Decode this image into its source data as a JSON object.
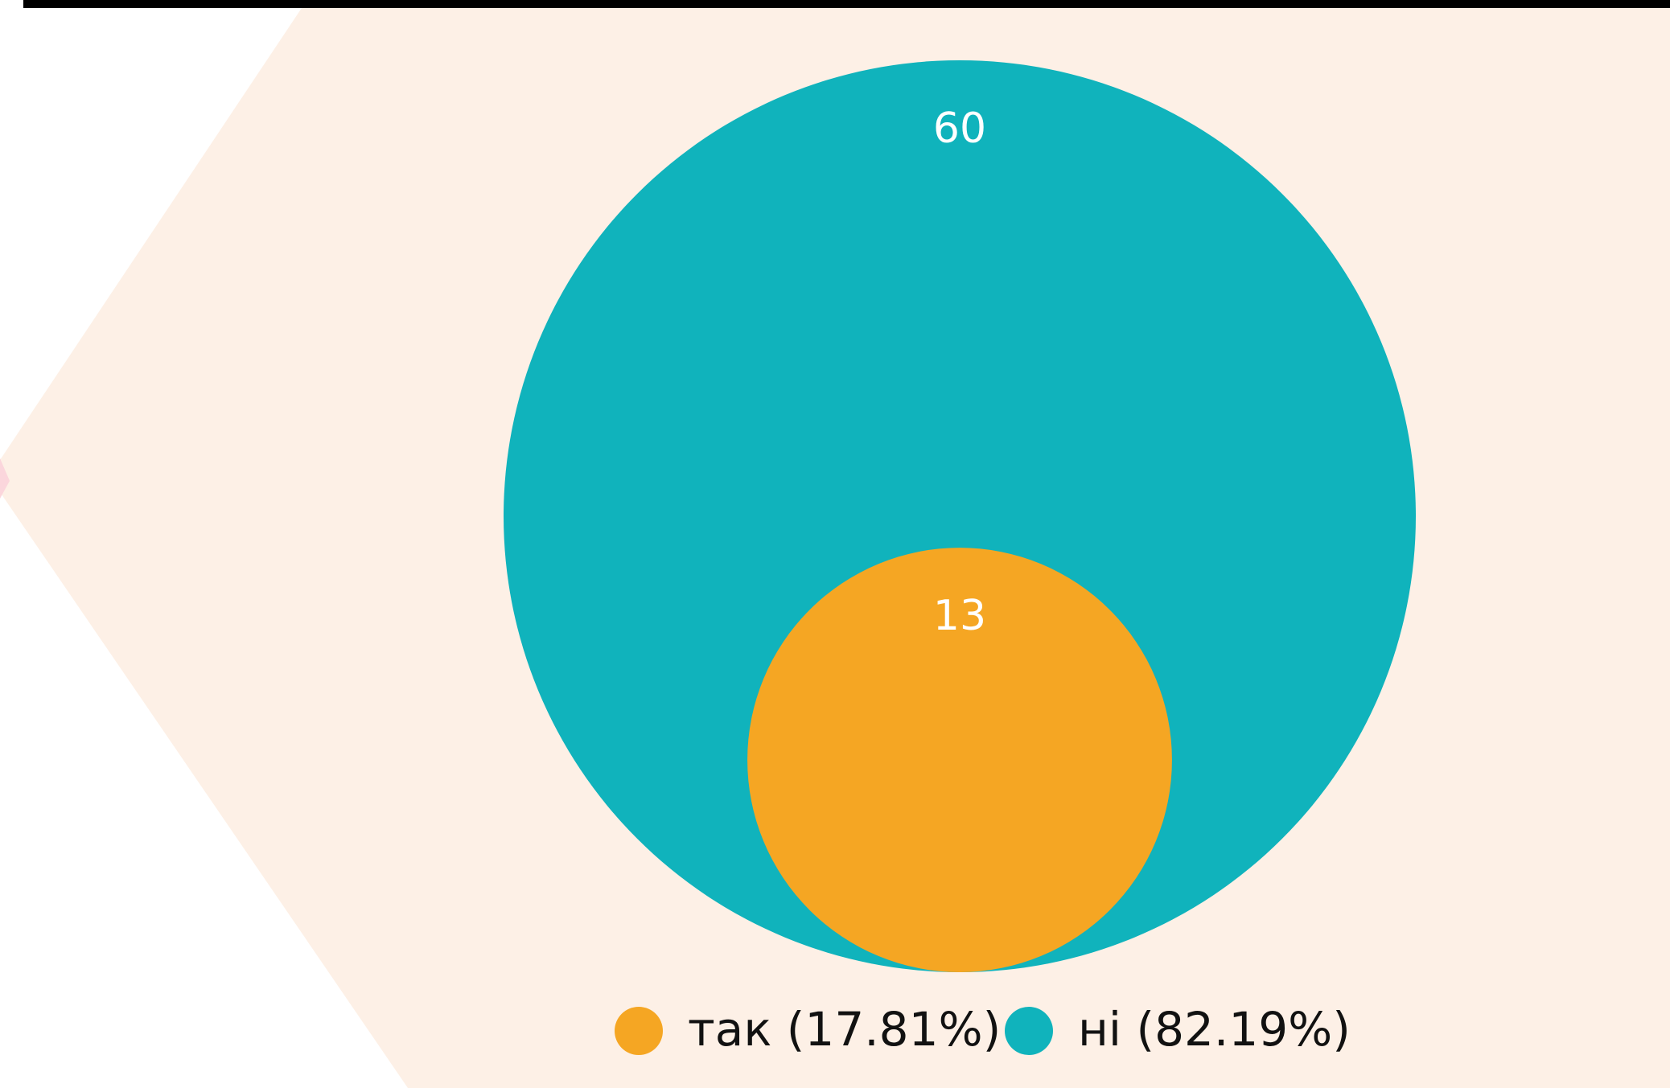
{
  "chart_data": {
    "type": "nested_circles",
    "categories": [
      "так",
      "ні"
    ],
    "values": [
      13,
      60
    ],
    "legend_labels": [
      "так (17.81%)",
      "ні (82.19%)"
    ],
    "colors": [
      "#f5a623",
      "#10b3bc"
    ],
    "legend": "bottom"
  }
}
